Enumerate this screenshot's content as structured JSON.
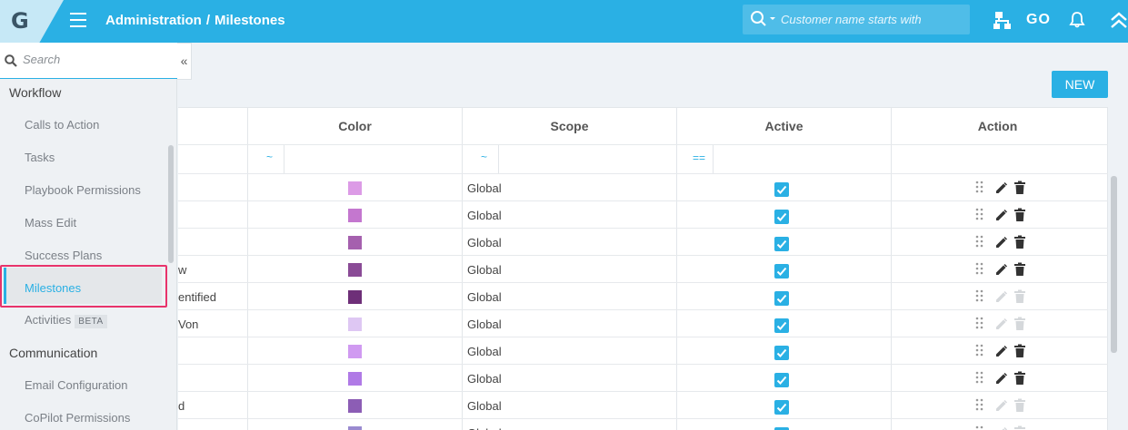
{
  "header": {
    "logo": "G",
    "breadcrumb_section": "Administration",
    "breadcrumb_sep": "/",
    "breadcrumb_page": "Milestones",
    "search_placeholder": "Customer name starts with",
    "go_label": "GO"
  },
  "sidebar": {
    "search_placeholder": "Search",
    "groups": [
      {
        "label": "Workflow"
      },
      {
        "label": "Communication"
      }
    ],
    "items": [
      {
        "label": "Calls to Action"
      },
      {
        "label": "Tasks"
      },
      {
        "label": "Playbook Permissions"
      },
      {
        "label": "Mass Edit"
      },
      {
        "label": "Success Plans"
      },
      {
        "label": "Milestones",
        "active": true
      },
      {
        "label": "Activities",
        "badge": "BETA"
      },
      {
        "label": "Email Configuration"
      },
      {
        "label": "CoPilot Permissions"
      }
    ],
    "collapse_icon": "«"
  },
  "toolbar": {
    "new_label": "NEW"
  },
  "grid": {
    "columns": [
      "Color",
      "Scope",
      "Active",
      "Action"
    ],
    "filters": {
      "color": "~",
      "scope": "~",
      "active": "=="
    },
    "rows": [
      {
        "name": "",
        "color": "#dc9be6",
        "scope": "Global",
        "active": true,
        "editable": true
      },
      {
        "name": "",
        "color": "#c477cf",
        "scope": "Global",
        "active": true,
        "editable": true
      },
      {
        "name": "",
        "color": "#a560ae",
        "scope": "Global",
        "active": true,
        "editable": true
      },
      {
        "name": "w",
        "color": "#8a4b96",
        "scope": "Global",
        "active": true,
        "editable": true
      },
      {
        "name": "entified",
        "color": "#6e2f78",
        "scope": "Global",
        "active": true,
        "editable": false
      },
      {
        "name": "Von",
        "color": "#dec7f3",
        "scope": "Global",
        "active": true,
        "editable": false
      },
      {
        "name": "",
        "color": "#d09af1",
        "scope": "Global",
        "active": true,
        "editable": true
      },
      {
        "name": "",
        "color": "#b07ae6",
        "scope": "Global",
        "active": true,
        "editable": true
      },
      {
        "name": "d",
        "color": "#8c5db5",
        "scope": "Global",
        "active": true,
        "editable": false
      },
      {
        "name": "",
        "color": "#9a8ad0",
        "scope": "Global",
        "active": true,
        "editable": false
      }
    ]
  }
}
